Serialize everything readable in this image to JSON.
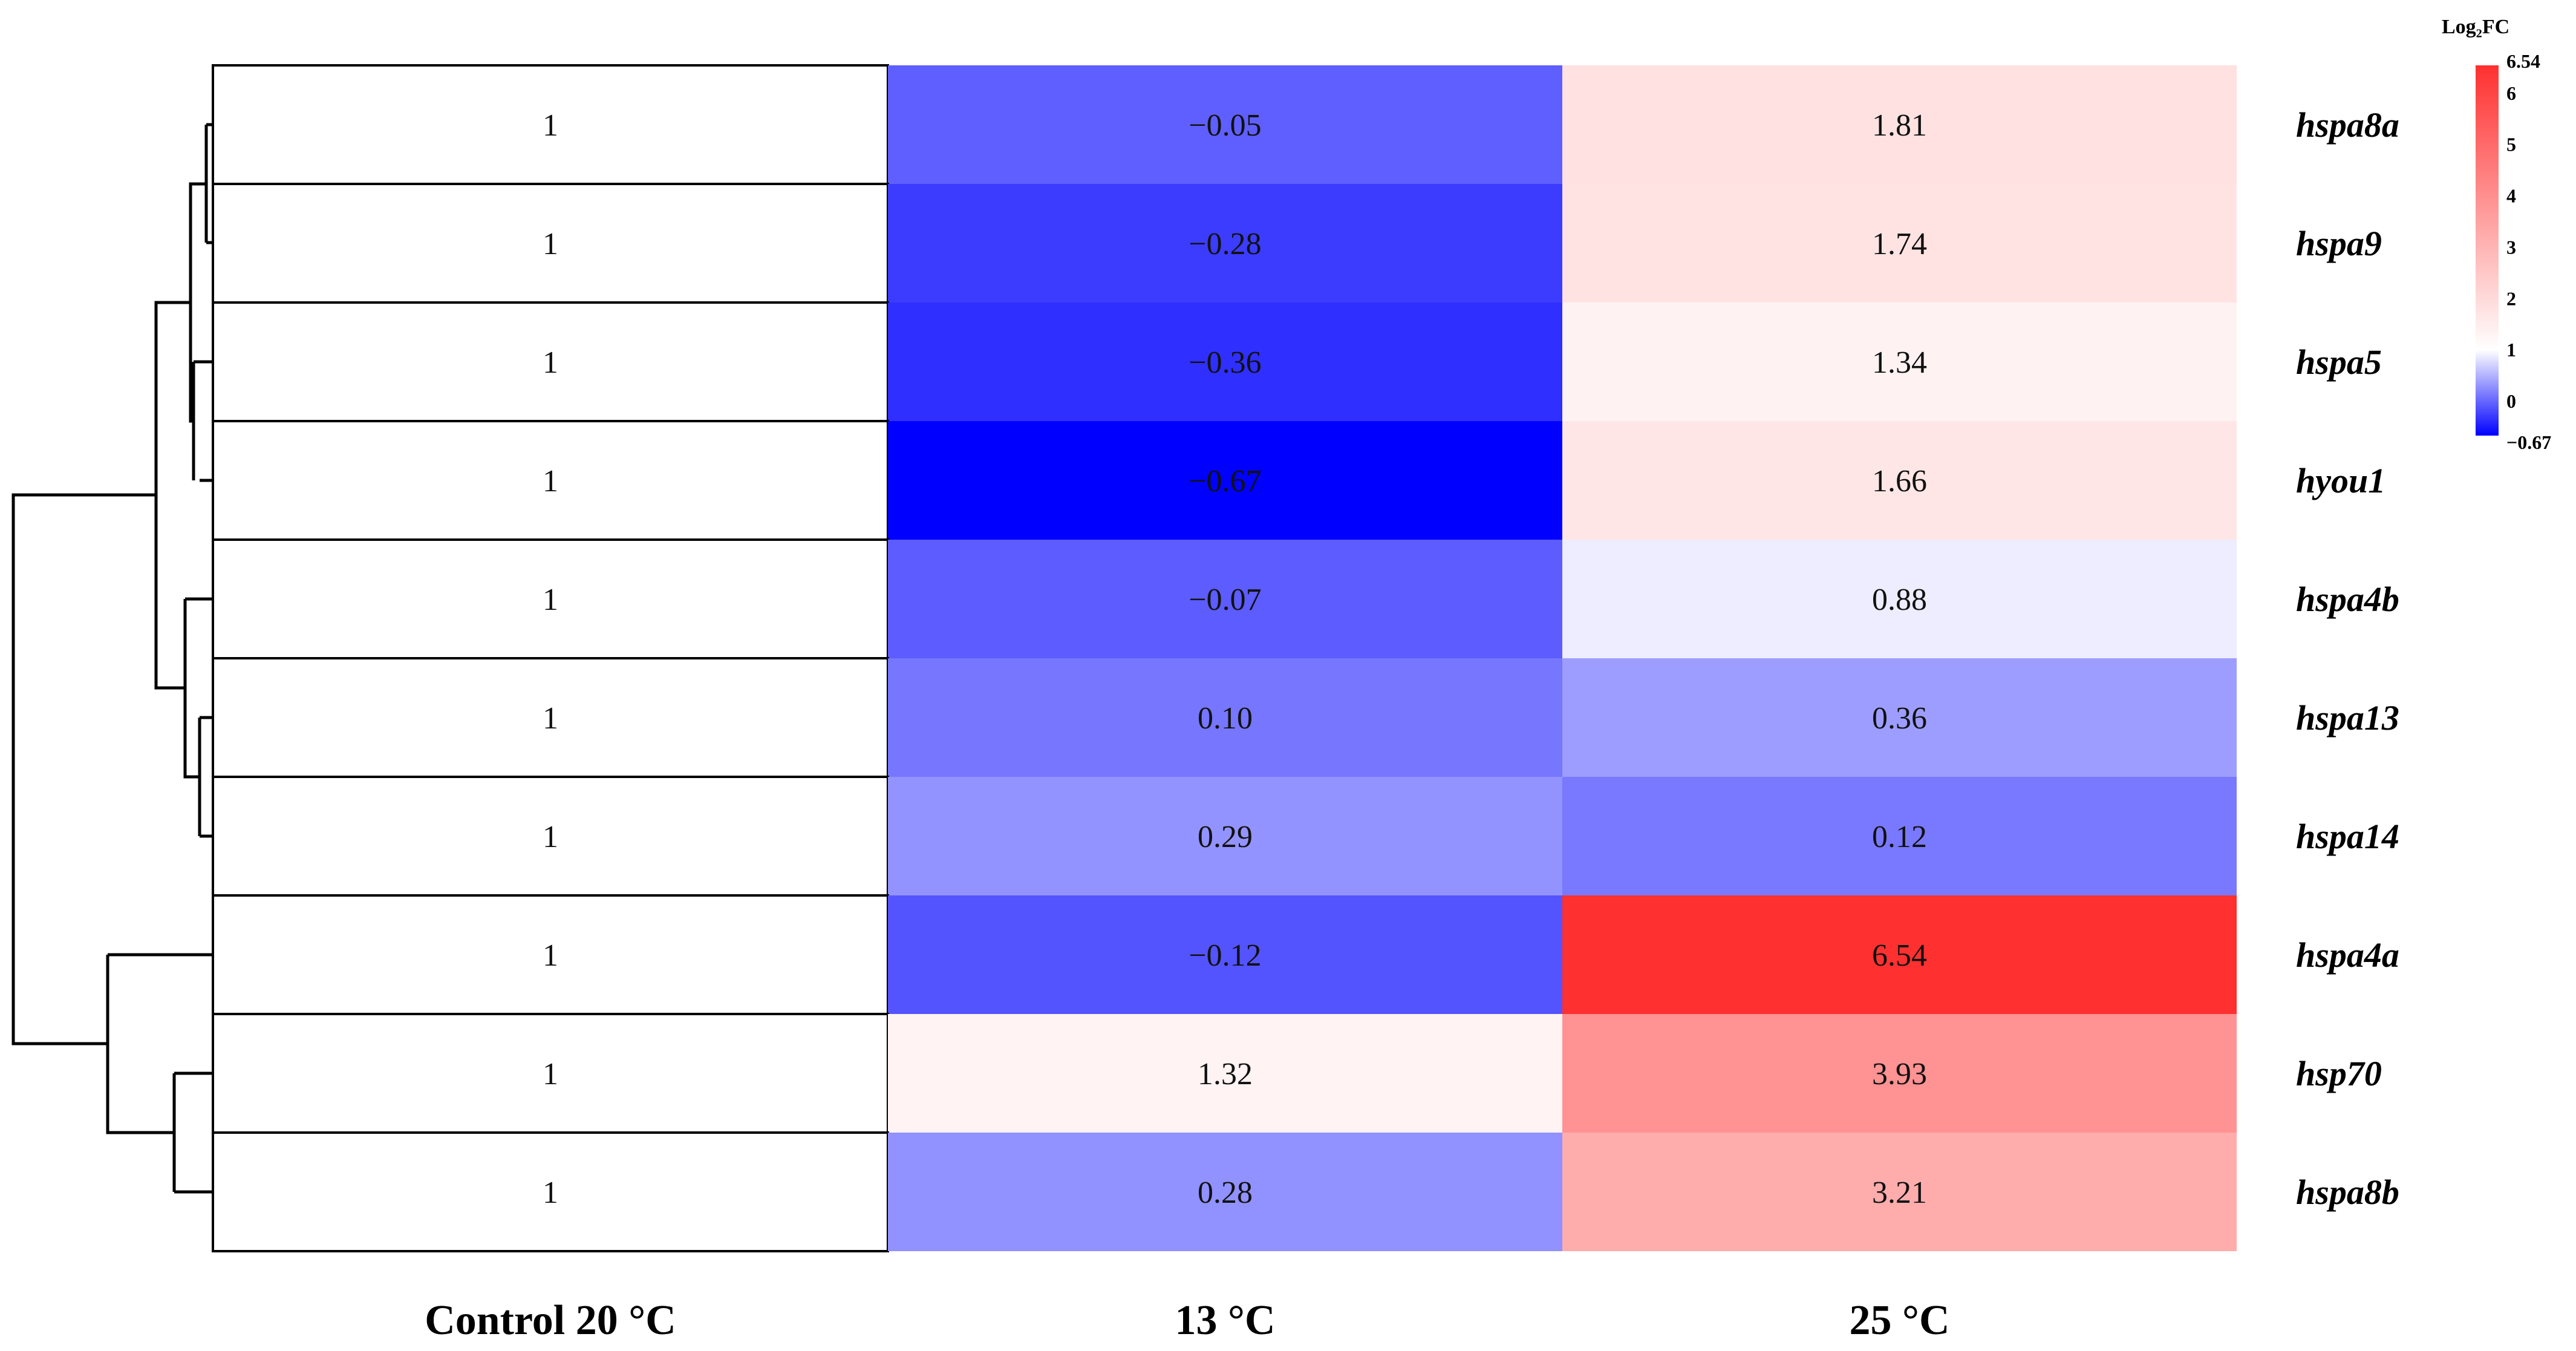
{
  "chart_data": {
    "type": "heatmap",
    "columns": [
      "Control 20 °C",
      "13 °C",
      "25 °C"
    ],
    "rows": [
      "hspa8a",
      "hspa9",
      "hspa5",
      "hyou1",
      "hspa4b",
      "hspa13",
      "hspa14",
      "hspa4a",
      "hsp70",
      "hspa8b"
    ],
    "values": [
      [
        1,
        -0.05,
        1.81
      ],
      [
        1,
        -0.28,
        1.74
      ],
      [
        1,
        -0.36,
        1.34
      ],
      [
        1,
        -0.67,
        1.66
      ],
      [
        1,
        -0.07,
        0.88
      ],
      [
        1,
        0.1,
        0.36
      ],
      [
        1,
        0.29,
        0.12
      ],
      [
        1,
        -0.12,
        6.54
      ],
      [
        1,
        1.32,
        3.93
      ],
      [
        1,
        0.28,
        3.21
      ]
    ],
    "value_labels": [
      [
        "1",
        "−0.05",
        "1.81"
      ],
      [
        "1",
        "−0.28",
        "1.74"
      ],
      [
        "1",
        "−0.36",
        "1.34"
      ],
      [
        "1",
        "−0.67",
        "1.66"
      ],
      [
        "1",
        "−0.07",
        "0.88"
      ],
      [
        "1",
        "0.10",
        "0.36"
      ],
      [
        "1",
        "0.29",
        "0.12"
      ],
      [
        "1",
        "−0.12",
        "6.54"
      ],
      [
        "1",
        "1.32",
        "3.93"
      ],
      [
        "1",
        "0.28",
        "3.21"
      ]
    ],
    "legend": {
      "title": "Log₂FC",
      "min": -0.67,
      "mid": 1,
      "max": 6.54,
      "ticks": [
        {
          "value": 6.54,
          "label": "6.54"
        },
        {
          "value": 6,
          "label": "6"
        },
        {
          "value": 5,
          "label": "5"
        },
        {
          "value": 4,
          "label": "4"
        },
        {
          "value": 3,
          "label": "3"
        },
        {
          "value": 2,
          "label": "2"
        },
        {
          "value": 1,
          "label": "1"
        },
        {
          "value": 0,
          "label": "0"
        },
        {
          "value": -0.67,
          "label": "−0.67"
        }
      ],
      "placement": "top-right",
      "low_color": "#0000ff",
      "mid_color": "#ffffff",
      "high_color": "#ff3030"
    },
    "row_dendrogram": true
  }
}
